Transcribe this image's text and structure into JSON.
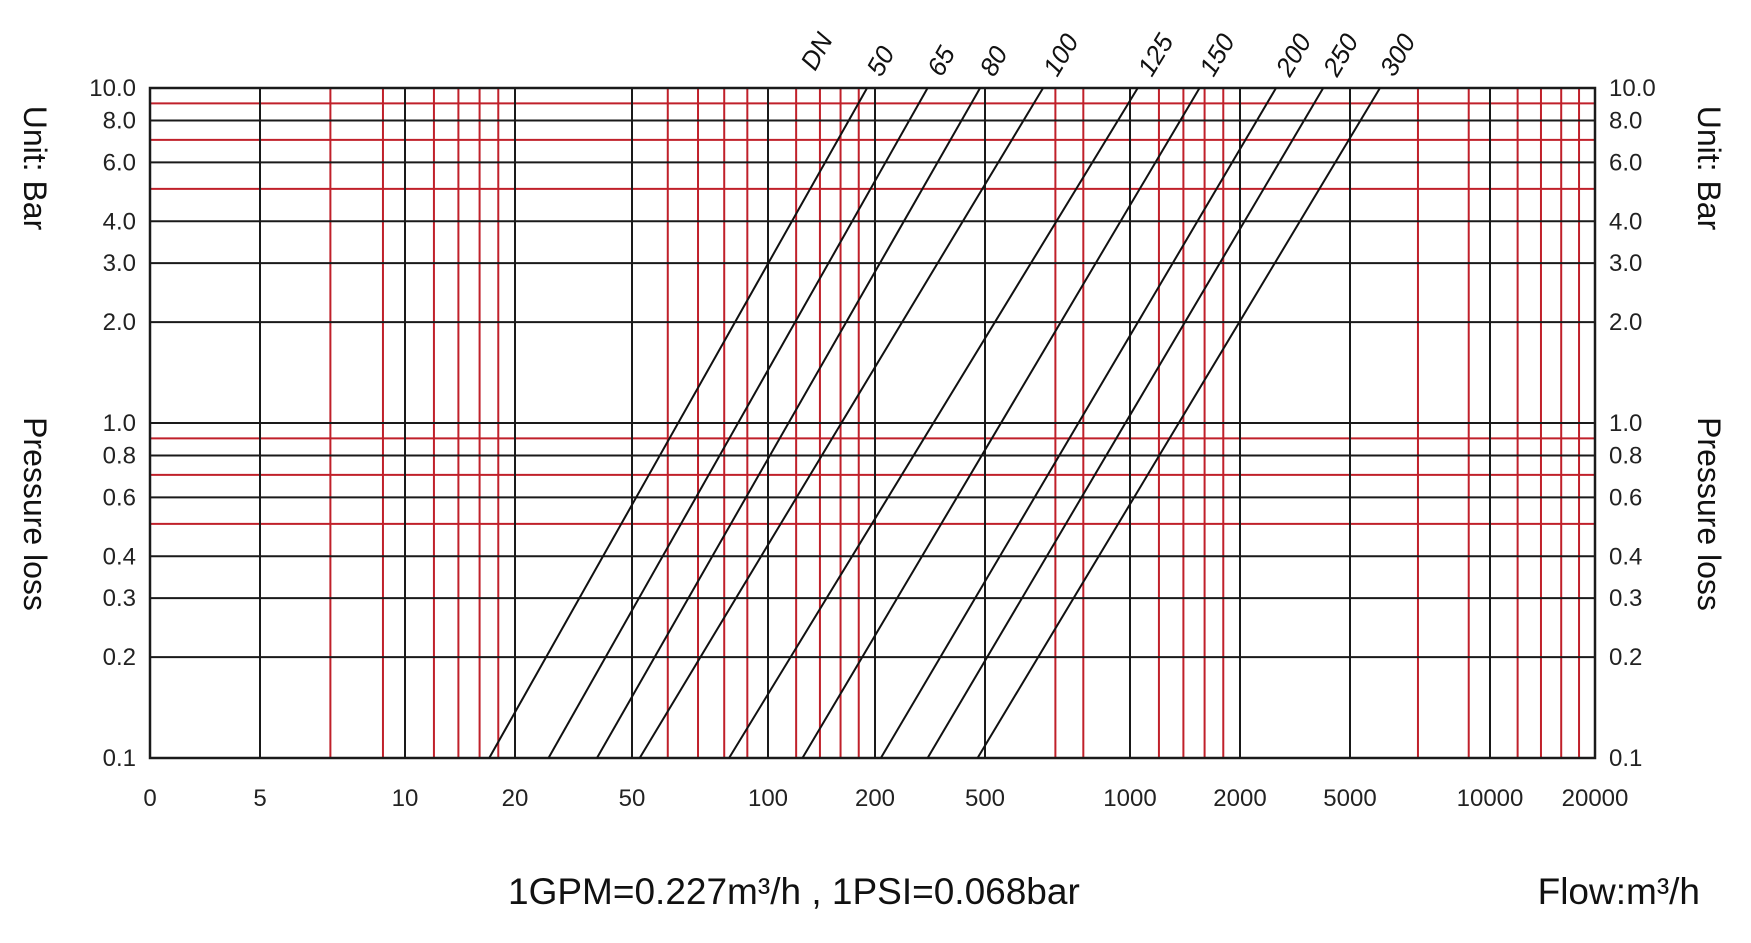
{
  "chart_data": {
    "type": "line",
    "title": "",
    "xlabel": "Flow:m³/h",
    "ylabel": "Pressure loss Unit: Bar",
    "y_axis_title_segments": [
      "Unit: Bar",
      "Pressure loss"
    ],
    "x_scale": "log",
    "y_scale": "log",
    "xlim": [
      0,
      20000
    ],
    "ylim": [
      0.1,
      10.0
    ],
    "x_tick_labels": [
      "0",
      "5",
      "10",
      "20",
      "50",
      "100",
      "200",
      "500",
      "1000",
      "2000",
      "5000",
      "10000",
      "20000"
    ],
    "y_tick_labels_left": [
      "10.0",
      "8.0",
      "6.0",
      "4.0",
      "3.0",
      "2.0",
      "1.0",
      "0.8",
      "0.6",
      "0.4",
      "0.3",
      "0.2",
      "0.1"
    ],
    "y_tick_labels_right": [
      "10.0",
      "8.0",
      "6.0",
      "4.0",
      "3.0",
      "2.0",
      "1.0",
      "0.8",
      "0.6",
      "0.4",
      "0.3",
      "0.2",
      "0.1"
    ],
    "grid": true,
    "grid_color_major": "#1a1a1a",
    "grid_color_minor": "#c0202a",
    "line_color": "#111111",
    "series_label_prefix": "DN",
    "series": [
      {
        "name": "50",
        "x": [
          17,
          190
        ],
        "y": [
          0.1,
          10.0
        ]
      },
      {
        "name": "65",
        "x": [
          26,
          310
        ],
        "y": [
          0.1,
          10.0
        ]
      },
      {
        "name": "80",
        "x": [
          38,
          480
        ],
        "y": [
          0.1,
          10.0
        ]
      },
      {
        "name": "100",
        "x": [
          52,
          660
        ],
        "y": [
          0.1,
          10.0
        ]
      },
      {
        "name": "125",
        "x": [
          82,
          1050
        ],
        "y": [
          0.1,
          10.0
        ]
      },
      {
        "name": "150",
        "x": [
          125,
          1550
        ],
        "y": [
          0.1,
          10.0
        ]
      },
      {
        "name": "200",
        "x": [
          210,
          2700
        ],
        "y": [
          0.1,
          10.0
        ]
      },
      {
        "name": "250",
        "x": [
          310,
          4000
        ],
        "y": [
          0.1,
          10.0
        ]
      },
      {
        "name": "300",
        "x": [
          470,
          5800
        ],
        "y": [
          0.1,
          10.0
        ]
      }
    ],
    "footnote": "1GPM=0.227m³/h , 1PSI=0.068bar"
  }
}
